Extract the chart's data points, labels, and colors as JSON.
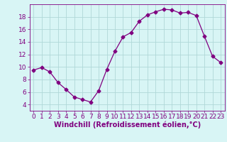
{
  "x": [
    0,
    1,
    2,
    3,
    4,
    5,
    6,
    7,
    8,
    9,
    10,
    11,
    12,
    13,
    14,
    15,
    16,
    17,
    18,
    19,
    20,
    21,
    22,
    23
  ],
  "y": [
    9.5,
    9.9,
    9.2,
    7.5,
    6.4,
    5.2,
    4.8,
    4.4,
    6.2,
    9.6,
    12.5,
    14.8,
    15.5,
    17.3,
    18.3,
    18.8,
    19.2,
    19.1,
    18.6,
    18.7,
    18.2,
    14.9,
    11.7,
    10.7
  ],
  "line_color": "#800080",
  "marker": "D",
  "marker_size": 2.5,
  "bg_color": "#d8f5f5",
  "grid_color": "#b0d8d8",
  "xlabel": "Windchill (Refroidissement éolien,°C)",
  "xlabel_fontsize": 7,
  "tick_fontsize": 6.5,
  "ylim": [
    3,
    20
  ],
  "xlim": [
    -0.5,
    23.5
  ],
  "yticks": [
    4,
    6,
    8,
    10,
    12,
    14,
    16,
    18
  ],
  "xticks": [
    0,
    1,
    2,
    3,
    4,
    5,
    6,
    7,
    8,
    9,
    10,
    11,
    12,
    13,
    14,
    15,
    16,
    17,
    18,
    19,
    20,
    21,
    22,
    23
  ]
}
